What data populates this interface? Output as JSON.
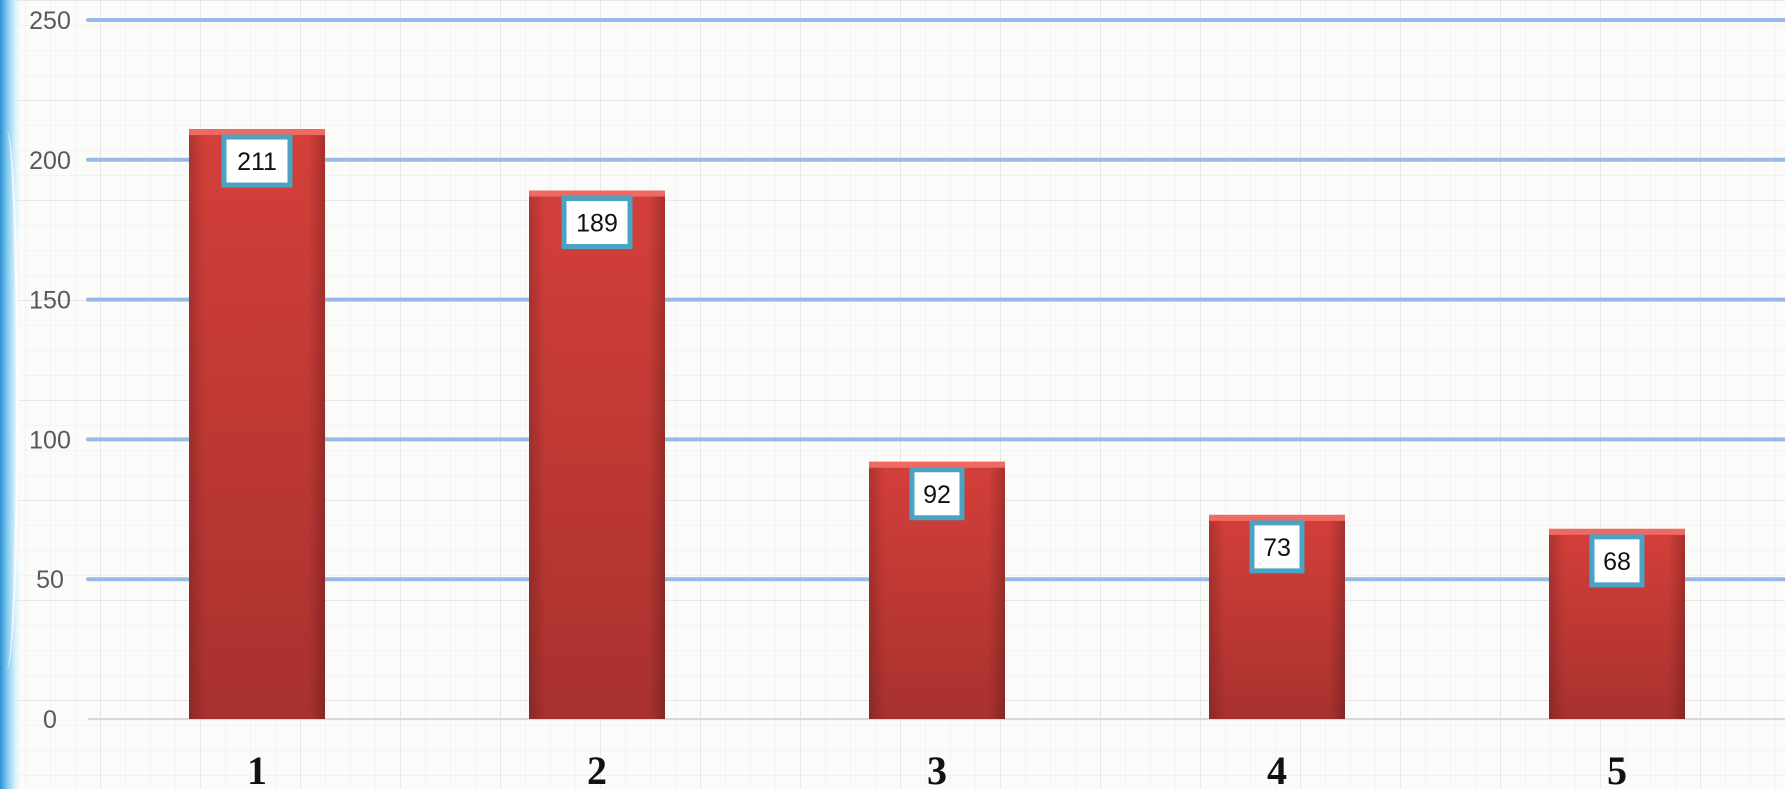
{
  "chart_data": {
    "type": "bar",
    "categories": [
      "1",
      "2",
      "3",
      "4",
      "5"
    ],
    "values": [
      211,
      189,
      92,
      73,
      68
    ],
    "data_labels": [
      "211",
      "189",
      "92",
      "73",
      "68"
    ],
    "title": "",
    "xlabel": "",
    "ylabel": "",
    "ylim": [
      0,
      250
    ],
    "yticks": [
      "0",
      "50",
      "100",
      "150",
      "200",
      "250"
    ],
    "grid": true,
    "legend": "none",
    "colors": {
      "bar": "#d43f3a",
      "bar_dark": "#a8312e",
      "gridline": "#8fb4e3",
      "label_border": "#4aa3c2"
    }
  }
}
